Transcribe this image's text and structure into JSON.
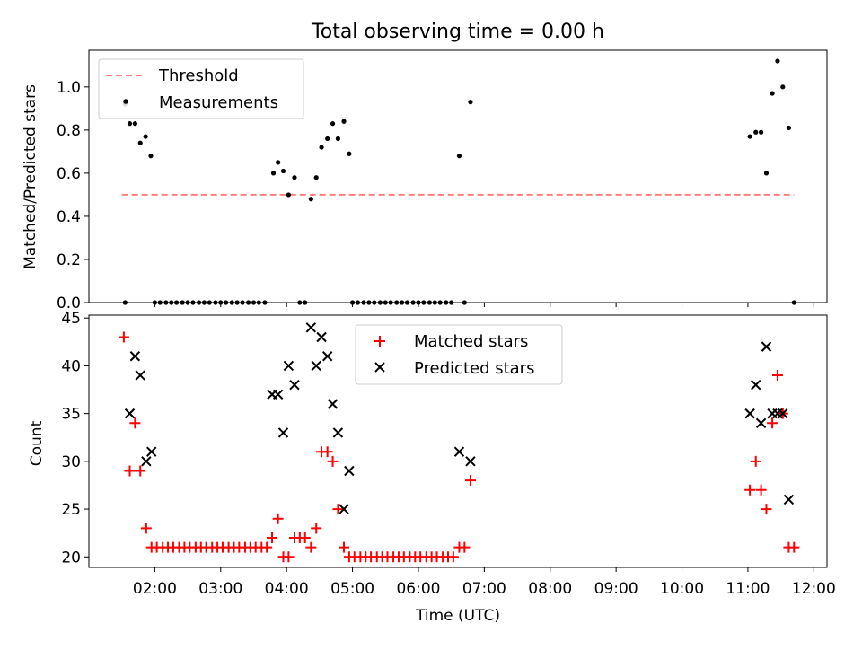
{
  "chart_data": [
    {
      "type": "scatter",
      "title": "Total observing time = 0.00 h",
      "xlabel": "",
      "ylabel": "Matched/Predicted stars",
      "xlim": [
        1.0,
        12.2
      ],
      "ylim": [
        0,
        1.17
      ],
      "yticks": [
        "0.0",
        "0.2",
        "0.4",
        "0.6",
        "0.8",
        "1.0"
      ],
      "legend_position": "top-left",
      "threshold": {
        "name": "Threshold",
        "value": 0.5,
        "x_range": [
          1.5,
          11.7
        ],
        "color": "#ff7f7f",
        "style": "dashed"
      },
      "series": [
        {
          "name": "Measurements",
          "color": "#000000",
          "marker": "dot",
          "points": [
            [
              1.55,
              0.92
            ],
            [
              1.62,
              0.83
            ],
            [
              1.7,
              0.83
            ],
            [
              1.78,
              0.74
            ],
            [
              1.86,
              0.77
            ],
            [
              1.94,
              0.68
            ],
            [
              3.8,
              0.6
            ],
            [
              3.87,
              0.65
            ],
            [
              3.95,
              0.61
            ],
            [
              4.03,
              0.5
            ],
            [
              4.12,
              0.58
            ],
            [
              4.37,
              0.48
            ],
            [
              4.45,
              0.58
            ],
            [
              4.53,
              0.72
            ],
            [
              4.62,
              0.76
            ],
            [
              4.7,
              0.83
            ],
            [
              4.78,
              0.76
            ],
            [
              4.87,
              0.84
            ],
            [
              4.95,
              0.69
            ],
            [
              6.62,
              0.68
            ],
            [
              6.79,
              0.93
            ],
            [
              11.03,
              0.77
            ],
            [
              11.12,
              0.79
            ],
            [
              11.2,
              0.79
            ],
            [
              11.28,
              0.6
            ],
            [
              11.37,
              0.97
            ],
            [
              11.45,
              1.12
            ],
            [
              11.53,
              1.0
            ],
            [
              11.62,
              0.81
            ],
            [
              1.55,
              0
            ],
            [
              2.0,
              0
            ],
            [
              2.08,
              0
            ],
            [
              2.17,
              0
            ],
            [
              2.25,
              0
            ],
            [
              2.33,
              0
            ],
            [
              2.42,
              0
            ],
            [
              2.5,
              0
            ],
            [
              2.58,
              0
            ],
            [
              2.67,
              0
            ],
            [
              2.75,
              0
            ],
            [
              2.83,
              0
            ],
            [
              2.92,
              0
            ],
            [
              3.0,
              0
            ],
            [
              3.08,
              0
            ],
            [
              3.17,
              0
            ],
            [
              3.25,
              0
            ],
            [
              3.33,
              0
            ],
            [
              3.42,
              0
            ],
            [
              3.5,
              0
            ],
            [
              3.58,
              0
            ],
            [
              3.67,
              0
            ],
            [
              4.2,
              0
            ],
            [
              4.28,
              0
            ],
            [
              5.0,
              0
            ],
            [
              5.08,
              0
            ],
            [
              5.17,
              0
            ],
            [
              5.25,
              0
            ],
            [
              5.33,
              0
            ],
            [
              5.42,
              0
            ],
            [
              5.5,
              0
            ],
            [
              5.58,
              0
            ],
            [
              5.67,
              0
            ],
            [
              5.75,
              0
            ],
            [
              5.83,
              0
            ],
            [
              5.92,
              0
            ],
            [
              6.0,
              0
            ],
            [
              6.08,
              0
            ],
            [
              6.17,
              0
            ],
            [
              6.25,
              0
            ],
            [
              6.33,
              0
            ],
            [
              6.42,
              0
            ],
            [
              6.5,
              0
            ],
            [
              6.7,
              0
            ],
            [
              11.7,
              0
            ]
          ]
        }
      ]
    },
    {
      "type": "scatter",
      "title": "",
      "xlabel": "Time (UTC)",
      "ylabel": "Count",
      "xlim": [
        1.0,
        12.2
      ],
      "ylim": [
        18.9,
        45.3
      ],
      "yticks": [
        "20",
        "25",
        "30",
        "35",
        "40",
        "45"
      ],
      "xticks": [
        "02:00",
        "03:00",
        "04:00",
        "05:00",
        "06:00",
        "07:00",
        "08:00",
        "09:00",
        "10:00",
        "11:00",
        "12:00"
      ],
      "legend_position": "top-center",
      "series": [
        {
          "name": "Matched stars",
          "color": "#ff0000",
          "marker": "plus",
          "points": [
            [
              1.53,
              43
            ],
            [
              1.62,
              29
            ],
            [
              1.7,
              34
            ],
            [
              1.78,
              29
            ],
            [
              1.87,
              23
            ],
            [
              1.95,
              21
            ],
            [
              2.03,
              21
            ],
            [
              2.12,
              21
            ],
            [
              2.2,
              21
            ],
            [
              2.28,
              21
            ],
            [
              2.37,
              21
            ],
            [
              2.45,
              21
            ],
            [
              2.53,
              21
            ],
            [
              2.62,
              21
            ],
            [
              2.7,
              21
            ],
            [
              2.78,
              21
            ],
            [
              2.87,
              21
            ],
            [
              2.95,
              21
            ],
            [
              3.03,
              21
            ],
            [
              3.12,
              21
            ],
            [
              3.2,
              21
            ],
            [
              3.28,
              21
            ],
            [
              3.37,
              21
            ],
            [
              3.45,
              21
            ],
            [
              3.53,
              21
            ],
            [
              3.62,
              21
            ],
            [
              3.7,
              21
            ],
            [
              3.78,
              22
            ],
            [
              3.87,
              24
            ],
            [
              3.95,
              20
            ],
            [
              4.03,
              20
            ],
            [
              4.12,
              22
            ],
            [
              4.2,
              22
            ],
            [
              4.28,
              22
            ],
            [
              4.37,
              21
            ],
            [
              4.45,
              23
            ],
            [
              4.53,
              31
            ],
            [
              4.62,
              31
            ],
            [
              4.7,
              30
            ],
            [
              4.78,
              25
            ],
            [
              4.87,
              21
            ],
            [
              4.95,
              20
            ],
            [
              5.03,
              20
            ],
            [
              5.12,
              20
            ],
            [
              5.2,
              20
            ],
            [
              5.28,
              20
            ],
            [
              5.37,
              20
            ],
            [
              5.45,
              20
            ],
            [
              5.53,
              20
            ],
            [
              5.62,
              20
            ],
            [
              5.7,
              20
            ],
            [
              5.78,
              20
            ],
            [
              5.87,
              20
            ],
            [
              5.95,
              20
            ],
            [
              6.03,
              20
            ],
            [
              6.12,
              20
            ],
            [
              6.2,
              20
            ],
            [
              6.28,
              20
            ],
            [
              6.37,
              20
            ],
            [
              6.45,
              20
            ],
            [
              6.53,
              20
            ],
            [
              6.62,
              21
            ],
            [
              6.7,
              21
            ],
            [
              6.79,
              28
            ],
            [
              11.03,
              27
            ],
            [
              11.12,
              30
            ],
            [
              11.2,
              27
            ],
            [
              11.28,
              25
            ],
            [
              11.37,
              34
            ],
            [
              11.45,
              39
            ],
            [
              11.53,
              35
            ],
            [
              11.62,
              21
            ],
            [
              11.7,
              21
            ]
          ]
        },
        {
          "name": "Predicted stars",
          "color": "#000000",
          "marker": "x",
          "points": [
            [
              1.62,
              35
            ],
            [
              1.7,
              41
            ],
            [
              1.78,
              39
            ],
            [
              1.87,
              30
            ],
            [
              1.95,
              31
            ],
            [
              3.78,
              37
            ],
            [
              3.87,
              37
            ],
            [
              3.95,
              33
            ],
            [
              4.03,
              40
            ],
            [
              4.12,
              38
            ],
            [
              4.37,
              44
            ],
            [
              4.45,
              40
            ],
            [
              4.53,
              43
            ],
            [
              4.62,
              41
            ],
            [
              4.7,
              36
            ],
            [
              4.78,
              33
            ],
            [
              4.87,
              25
            ],
            [
              4.95,
              29
            ],
            [
              6.62,
              31
            ],
            [
              6.79,
              30
            ],
            [
              11.03,
              35
            ],
            [
              11.12,
              38
            ],
            [
              11.2,
              34
            ],
            [
              11.28,
              42
            ],
            [
              11.37,
              35
            ],
            [
              11.45,
              35
            ],
            [
              11.53,
              35
            ],
            [
              11.62,
              26
            ]
          ]
        }
      ]
    }
  ]
}
